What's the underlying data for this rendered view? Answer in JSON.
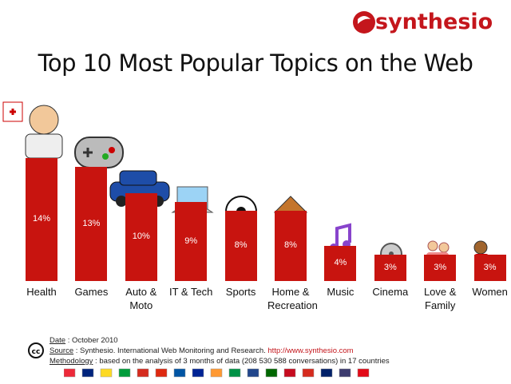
{
  "logo": "synthesio",
  "chart_data": {
    "type": "bar",
    "title": "Top 10 Most Popular Topics on the Web",
    "categories": [
      "Health",
      "Games",
      "Auto & Moto",
      "IT & Tech",
      "Sports",
      "Home & Recreation",
      "Music",
      "Cinema",
      "Love & Family",
      "Women"
    ],
    "values": [
      14,
      13,
      10,
      9,
      8,
      8,
      4,
      3,
      3,
      3
    ],
    "value_labels": [
      "14%",
      "13%",
      "10%",
      "9%",
      "8%",
      "8%",
      "4%",
      "3%",
      "3%",
      "3%"
    ],
    "color": "#c8140f"
  },
  "footer": {
    "date": {
      "key": "Date",
      "text": ": October 2010"
    },
    "source": {
      "key": "Source",
      "text": ": Synthesio. International Web Monitoring and Research.",
      "url": "http://www.synthesio.com"
    },
    "methodology": {
      "key": "Methodology",
      "text": ": based on the analysis of 3 months of data (208 530 588 conversations) in 17 countries"
    }
  }
}
